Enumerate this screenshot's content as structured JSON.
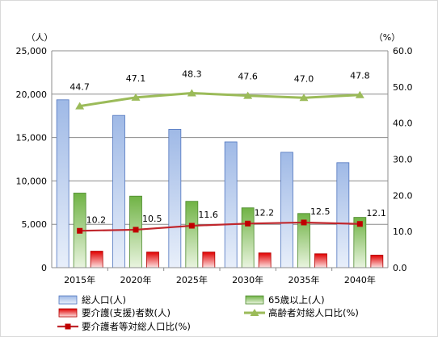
{
  "chart_data": {
    "type": "bar",
    "categories": [
      "2015年",
      "2020年",
      "2025年",
      "2030年",
      "2035年",
      "2040年"
    ],
    "y_left": {
      "label": "（人）",
      "min": 0,
      "max": 25000,
      "step": 5000,
      "ticks": [
        "0",
        "5,000",
        "10,000",
        "15,000",
        "20,000",
        "25,000"
      ]
    },
    "y_right": {
      "label": "（%）",
      "min": 0,
      "max": 60,
      "step": 10,
      "ticks": [
        "0.0",
        "10.0",
        "20.0",
        "30.0",
        "40.0",
        "50.0",
        "60.0"
      ]
    },
    "grid": true,
    "series": [
      {
        "name": "総人口(人)",
        "type": "bar",
        "axis": "left",
        "color": "#4472c4",
        "values": [
          19350,
          17550,
          15950,
          14500,
          13300,
          12100
        ]
      },
      {
        "name": "65歳以上(人)",
        "type": "bar",
        "axis": "left",
        "color": "#70ad47",
        "values": [
          8600,
          8250,
          7650,
          6900,
          6250,
          5800
        ]
      },
      {
        "name": "要介護(支援)者数(人)",
        "type": "bar",
        "axis": "left",
        "color": "#e31a1c",
        "values": [
          1900,
          1800,
          1800,
          1700,
          1600,
          1450
        ]
      },
      {
        "name": "高齢者対総人口比(%)",
        "type": "line",
        "axis": "right",
        "color": "#9bbb59",
        "marker": "triangle",
        "values": [
          44.7,
          47.1,
          48.3,
          47.6,
          47.0,
          47.8
        ],
        "labels": [
          "44.7",
          "47.1",
          "48.3",
          "47.6",
          "47.0",
          "47.8"
        ]
      },
      {
        "name": "要介護者等対総人口比(%)",
        "type": "line",
        "axis": "right",
        "color": "#c0272d",
        "marker": "square",
        "values": [
          10.2,
          10.5,
          11.6,
          12.2,
          12.5,
          12.1
        ],
        "labels": [
          "10.2",
          "10.5",
          "11.6",
          "12.2",
          "12.5",
          "12.1"
        ]
      }
    ],
    "legend_position": "bottom"
  }
}
